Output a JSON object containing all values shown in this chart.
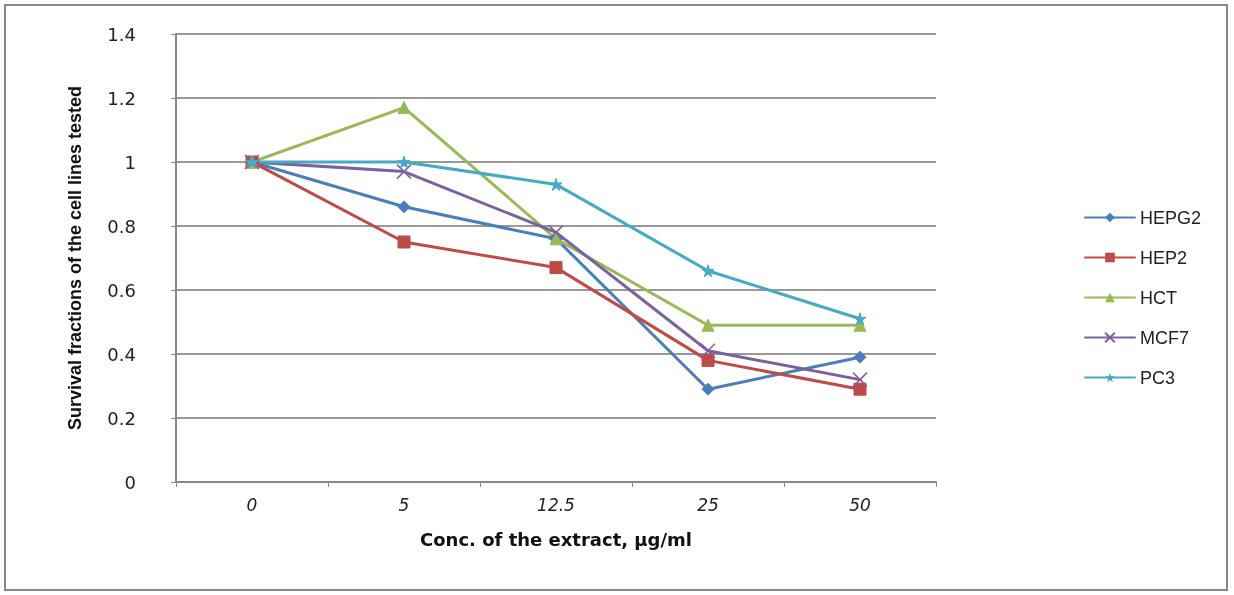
{
  "chart_data": {
    "type": "line",
    "xlabel": "Conc. of the extract, µg/ml",
    "ylabel": "Survival fractions of the cell lines tested",
    "categories": [
      "0",
      "5",
      "12.5",
      "25",
      "50"
    ],
    "ylim": [
      0,
      1.4
    ],
    "yticks": [
      0,
      0.2,
      0.4,
      0.6,
      0.8,
      1,
      1.2,
      1.4
    ],
    "grid": "y",
    "legend": "right",
    "series": [
      {
        "name": "HEPG2",
        "color": "#4a7ebb",
        "marker": "diamond",
        "values": [
          1,
          0.86,
          0.76,
          0.29,
          0.39
        ]
      },
      {
        "name": "HEP2",
        "color": "#be4b48",
        "marker": "square",
        "values": [
          1,
          0.75,
          0.67,
          0.38,
          0.29
        ]
      },
      {
        "name": "HCT",
        "color": "#98b954",
        "marker": "triangle",
        "values": [
          1,
          1.17,
          0.76,
          0.49,
          0.49
        ]
      },
      {
        "name": "MCF7",
        "color": "#7d60a0",
        "marker": "cross",
        "values": [
          1,
          0.97,
          0.78,
          0.41,
          0.32
        ]
      },
      {
        "name": "PC3",
        "color": "#46aac5",
        "marker": "star",
        "values": [
          1,
          1.0,
          0.93,
          0.66,
          0.51
        ]
      }
    ]
  }
}
